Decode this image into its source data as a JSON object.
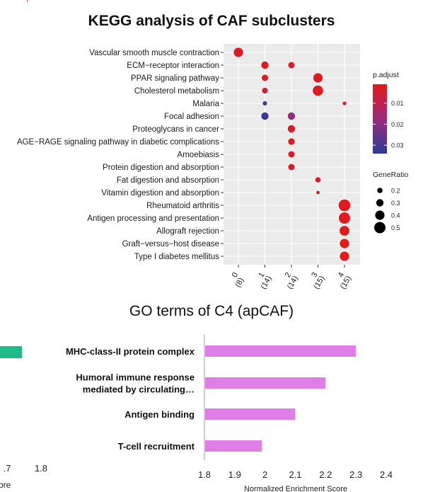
{
  "corner_fragment": "P",
  "chart_data": [
    {
      "type": "scatter",
      "title": "KEGG analysis of CAF subclusters",
      "x_categories": [
        "0\n(8)",
        "1\n(14)",
        "2\n(14)",
        "3\n(15)",
        "4\n(15)"
      ],
      "x_tick_main": [
        "0",
        "1",
        "2",
        "3",
        "4"
      ],
      "x_tick_sub": [
        "(8)",
        "(14)",
        "(14)",
        "(15)",
        "(15)"
      ],
      "y_categories": [
        "Vascular smooth muscle contraction",
        "ECM−receptor interaction",
        "PPAR signaling pathway",
        "Cholesterol metabolism",
        "Malaria",
        "Focal adhesion",
        "Proteoglycans in cancer",
        "AGE−RAGE signaling pathway in diabetic complications",
        "Amoebiasis",
        "Protein digestion and absorption",
        "Fat digestion and absorption",
        "Vitamin digestion and absorption",
        "Rheumatoid arthritis",
        "Antigen processing and presentation",
        "Allograft rejection",
        "Graft−versus−host disease",
        "Type I diabetes mellitus"
      ],
      "points": [
        {
          "x": 0,
          "y": 0,
          "gene_ratio": 0.4,
          "p_adjust": 0.003
        },
        {
          "x": 1,
          "y": 1,
          "gene_ratio": 0.3,
          "p_adjust": 0.003
        },
        {
          "x": 2,
          "y": 1,
          "gene_ratio": 0.25,
          "p_adjust": 0.004
        },
        {
          "x": 1,
          "y": 2,
          "gene_ratio": 0.25,
          "p_adjust": 0.003
        },
        {
          "x": 3,
          "y": 2,
          "gene_ratio": 0.4,
          "p_adjust": 0.002
        },
        {
          "x": 1,
          "y": 3,
          "gene_ratio": 0.22,
          "p_adjust": 0.005
        },
        {
          "x": 3,
          "y": 3,
          "gene_ratio": 0.45,
          "p_adjust": 0.002
        },
        {
          "x": 1,
          "y": 4,
          "gene_ratio": 0.15,
          "p_adjust": 0.028
        },
        {
          "x": 4,
          "y": 4,
          "gene_ratio": 0.12,
          "p_adjust": 0.006
        },
        {
          "x": 1,
          "y": 5,
          "gene_ratio": 0.3,
          "p_adjust": 0.032
        },
        {
          "x": 2,
          "y": 5,
          "gene_ratio": 0.3,
          "p_adjust": 0.018
        },
        {
          "x": 2,
          "y": 6,
          "gene_ratio": 0.3,
          "p_adjust": 0.003
        },
        {
          "x": 2,
          "y": 7,
          "gene_ratio": 0.26,
          "p_adjust": 0.003
        },
        {
          "x": 2,
          "y": 8,
          "gene_ratio": 0.25,
          "p_adjust": 0.003
        },
        {
          "x": 2,
          "y": 9,
          "gene_ratio": 0.25,
          "p_adjust": 0.004
        },
        {
          "x": 3,
          "y": 10,
          "gene_ratio": 0.2,
          "p_adjust": 0.003
        },
        {
          "x": 3,
          "y": 11,
          "gene_ratio": 0.1,
          "p_adjust": 0.003
        },
        {
          "x": 4,
          "y": 12,
          "gene_ratio": 0.52,
          "p_adjust": 0.001
        },
        {
          "x": 4,
          "y": 13,
          "gene_ratio": 0.5,
          "p_adjust": 0.001
        },
        {
          "x": 4,
          "y": 14,
          "gene_ratio": 0.42,
          "p_adjust": 0.001
        },
        {
          "x": 4,
          "y": 15,
          "gene_ratio": 0.4,
          "p_adjust": 0.001
        },
        {
          "x": 4,
          "y": 16,
          "gene_ratio": 0.4,
          "p_adjust": 0.001
        }
      ],
      "legend_color": {
        "title": "p.adjust",
        "ticks": [
          0.01,
          0.02,
          0.03
        ],
        "tick_labels": [
          "0.01",
          "0.02",
          "0.03"
        ],
        "range": [
          0.001,
          0.034
        ],
        "low_color": "#e31a1c",
        "high_color": "#2b3a99"
      },
      "legend_size": {
        "title": "GeneRatio",
        "values": [
          0.2,
          0.3,
          0.4,
          0.5
        ],
        "labels": [
          "0.2",
          "0.3",
          "0.4",
          "0.5"
        ]
      },
      "panel_background": "#ebebeb",
      "grid": true
    },
    {
      "type": "bar",
      "orientation": "horizontal",
      "title": "GO terms of C4 (apCAF)",
      "categories": [
        "MHC-class-II protein complex",
        "Humoral immune response\nmediated by circulating…",
        "Antigen binding",
        "T-cell recruitment"
      ],
      "category_lines": [
        [
          "MHC-class-II protein complex"
        ],
        [
          "Humoral immune response",
          "mediated by circulating…"
        ],
        [
          "Antigen binding"
        ],
        [
          "T-cell recruitment"
        ]
      ],
      "values": [
        2.3,
        2.2,
        2.1,
        1.99
      ],
      "xlim": [
        1.8,
        2.4
      ],
      "x_ticks": [
        1.8,
        1.9,
        2,
        2.1,
        2.2,
        2.3,
        2.4
      ],
      "x_tick_labels": [
        "1.8",
        "1.9",
        "2",
        "2.1",
        "2.2",
        "2.3",
        "2.4"
      ],
      "xlabel": "Normalized Enrichment Score",
      "bar_color": "#e07ee8"
    },
    {
      "type": "bar",
      "orientation": "horizontal",
      "partial": true,
      "x_tick_labels": [
        ".7",
        "1.8"
      ],
      "xlabel_fragment": "ore",
      "bar_color": "#1fb98a"
    }
  ]
}
